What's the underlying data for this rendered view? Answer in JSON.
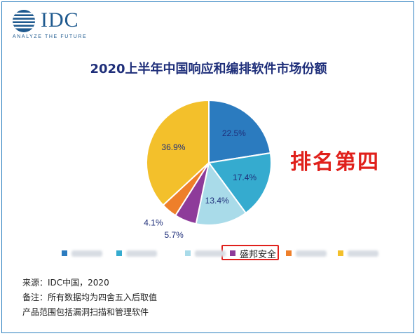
{
  "logo": {
    "text": "IDC",
    "tagline": "ANALYZE THE FUTURE"
  },
  "chart_data": {
    "type": "pie",
    "title": "2020上半年中国响应和编排软件市场份额",
    "values": [
      22.5,
      17.4,
      13.4,
      5.7,
      4.1,
      36.9
    ],
    "labels": [
      "22.5%",
      "17.4%",
      "13.4%",
      "5.7%",
      "4.1%",
      "36.9%"
    ],
    "colors": [
      "#2b7bbf",
      "#35abcf",
      "#a9dbe9",
      "#8e3b9a",
      "#ee7f2a",
      "#f3c02b"
    ],
    "legend": [
      {
        "color": "#2b7bbf",
        "label": null
      },
      {
        "color": "#35abcf",
        "label": null
      },
      {
        "color": "#a9dbe9",
        "label": null
      },
      {
        "color": "#8e3b9a",
        "label": "盛邦安全"
      },
      {
        "color": "#ee7f2a",
        "label": null
      },
      {
        "color": "#f3c02b",
        "label": null
      }
    ],
    "legend_placement": "bottom"
  },
  "annotation": {
    "rank": "排名第四"
  },
  "notes": {
    "source": "来源：IDC中国，2020",
    "remark": "备注：所有数据均为四舍五入后取值",
    "scope": "产品范围包括漏洞扫描和管理软件"
  }
}
